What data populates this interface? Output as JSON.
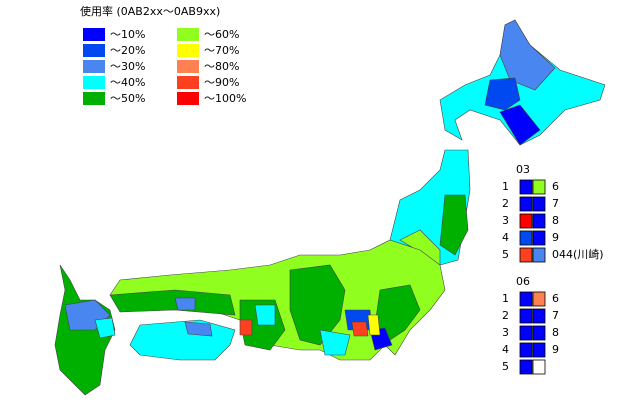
{
  "legend": {
    "title": "使用率 (0AB2xx〜0AB9xx)",
    "items": [
      {
        "label": "〜10%",
        "color": "#0000ff"
      },
      {
        "label": "〜20%",
        "color": "#0048f0"
      },
      {
        "label": "〜30%",
        "color": "#4a86f0"
      },
      {
        "label": "〜40%",
        "color": "#00ffff"
      },
      {
        "label": "〜50%",
        "color": "#00b000"
      },
      {
        "label": "〜60%",
        "color": "#90ff20"
      },
      {
        "label": "〜70%",
        "color": "#ffff00"
      },
      {
        "label": "〜80%",
        "color": "#ff8050"
      },
      {
        "label": "〜90%",
        "color": "#ff4020"
      },
      {
        "label": "〜100%",
        "color": "#ff0000"
      }
    ]
  },
  "panels": [
    {
      "title": "03",
      "rows": [
        {
          "label": "1",
          "colors": [
            "#0000ff",
            "#90ff20"
          ],
          "suffix": "6"
        },
        {
          "label": "2",
          "colors": [
            "#0000ff",
            "#0000ff"
          ],
          "suffix": "7"
        },
        {
          "label": "3",
          "colors": [
            "#ff0000",
            "#0000ff"
          ],
          "suffix": "8"
        },
        {
          "label": "4",
          "colors": [
            "#0048f0",
            "#0000ff"
          ],
          "suffix": "9"
        },
        {
          "label": "5",
          "colors": [
            "#ff4020",
            "#4a86f0"
          ],
          "suffix": "044(川崎)"
        }
      ]
    },
    {
      "title": "06",
      "rows": [
        {
          "label": "1",
          "colors": [
            "#0000ff",
            "#ff8050"
          ],
          "suffix": "6"
        },
        {
          "label": "2",
          "colors": [
            "#0000ff",
            "#0000ff"
          ],
          "suffix": "7"
        },
        {
          "label": "3",
          "colors": [
            "#0000ff",
            "#0000ff"
          ],
          "suffix": "8"
        },
        {
          "label": "4",
          "colors": [
            "#0000ff",
            "#0000ff"
          ],
          "suffix": "9"
        },
        {
          "label": "5",
          "colors": [
            "#0000ff",
            "#ffffff"
          ]
        }
      ]
    }
  ]
}
